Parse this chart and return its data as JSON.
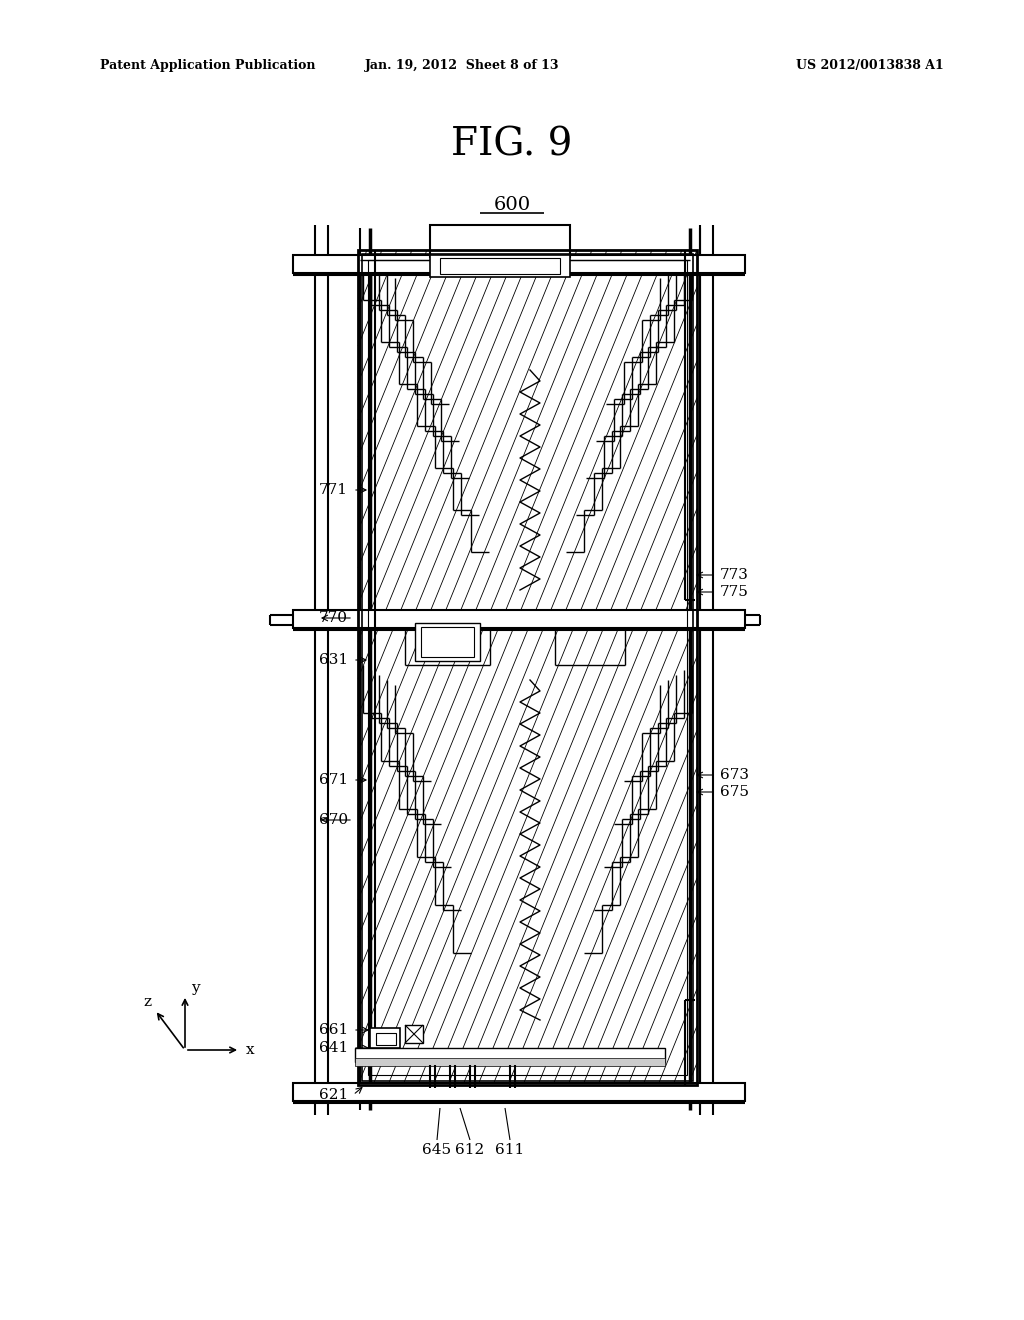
{
  "title": "FIG. 9",
  "header_left": "Patent Application Publication",
  "header_mid": "Jan. 19, 2012  Sheet 8 of 13",
  "header_right": "US 2012/0013838 A1",
  "label_600": "600",
  "bg_color": "#ffffff",
  "line_color": "#000000"
}
